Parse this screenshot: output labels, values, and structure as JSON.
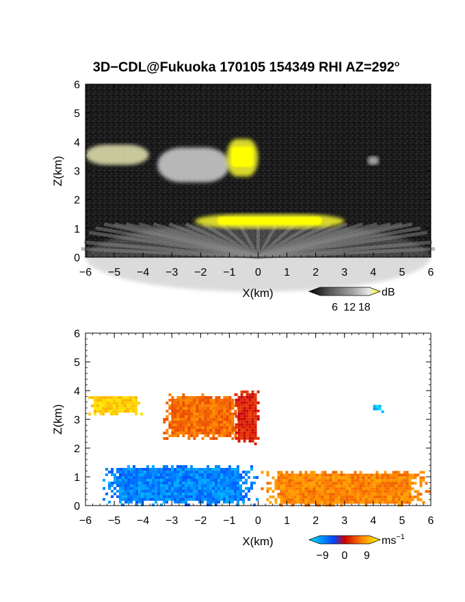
{
  "figure": {
    "title": "3D−CDL@Fukuoka 170105 154349 RHI AZ=292",
    "title_sup": "o"
  },
  "chart_data": [
    {
      "type": "heatmap",
      "panel": "backscatter",
      "xlabel": "X(km)",
      "ylabel": "Z(km)",
      "xlim": [
        -6,
        6
      ],
      "ylim": [
        0,
        6
      ],
      "xticks": [
        "−6",
        "−5",
        "−4",
        "−3",
        "−2",
        "−1",
        "0",
        "1",
        "2",
        "3",
        "4",
        "5",
        "6"
      ],
      "yticks": [
        "0",
        "1",
        "2",
        "3",
        "4",
        "5",
        "6"
      ],
      "colorbar": {
        "unit": "dB",
        "ticks": [
          "6",
          "12",
          "18"
        ],
        "range": [
          0,
          20
        ],
        "colors": [
          "#000000",
          "#5a5a5a",
          "#a0a0a0",
          "#e0e0e0",
          "#ffff00"
        ]
      },
      "features": [
        {
          "name": "cloud-layer-left",
          "x": [
            -6,
            -3.8
          ],
          "z": [
            3.2,
            3.9
          ],
          "value": 16
        },
        {
          "name": "cloud-layer-mid",
          "x": [
            -3.5,
            -1.0
          ],
          "z": [
            2.6,
            3.8
          ],
          "value": 14
        },
        {
          "name": "cloud-core",
          "x": [
            -1.1,
            0.0
          ],
          "z": [
            2.8,
            4.1
          ],
          "value": 19
        },
        {
          "name": "boundary-layer-top",
          "x": [
            -2.2,
            3.0
          ],
          "z": [
            1.0,
            1.5
          ],
          "value": 19
        },
        {
          "name": "thin-streak",
          "x": [
            3.8,
            4.2
          ],
          "z": [
            3.2,
            3.5
          ],
          "value": 12
        }
      ]
    },
    {
      "type": "heatmap",
      "panel": "doppler-velocity",
      "xlabel": "X(km)",
      "ylabel": "Z(km)",
      "xlim": [
        -6,
        6
      ],
      "ylim": [
        0,
        6
      ],
      "xticks": [
        "−6",
        "−5",
        "−4",
        "−3",
        "−2",
        "−1",
        "0",
        "1",
        "2",
        "3",
        "4",
        "5",
        "6"
      ],
      "yticks": [
        "0",
        "1",
        "2",
        "3",
        "4",
        "5",
        "6"
      ],
      "colorbar": {
        "unit": "ms",
        "unit_sup": "−1",
        "ticks": [
          "−9",
          "0",
          "9"
        ],
        "range": [
          -10,
          10
        ],
        "colors": [
          "#00e5ff",
          "#0044ff",
          "#d00000",
          "#ff8800",
          "#ffff00"
        ]
      },
      "features": [
        {
          "name": "upper-cloud-left",
          "x": [
            -6,
            -4.0
          ],
          "z": [
            3.2,
            3.9
          ],
          "value": 8
        },
        {
          "name": "upper-cloud-mid",
          "x": [
            -3.4,
            -0.6
          ],
          "z": [
            2.3,
            4.0
          ],
          "value": 4
        },
        {
          "name": "upper-cloud-core",
          "x": [
            -0.9,
            0.0
          ],
          "z": [
            2.1,
            4.1
          ],
          "value": 1
        },
        {
          "name": "boundary-layer-negative",
          "x": [
            -5.5,
            0.0
          ],
          "z": [
            0,
            1.5
          ],
          "value": -7
        },
        {
          "name": "boundary-layer-positive",
          "x": [
            0.0,
            6.0
          ],
          "z": [
            0,
            1.3
          ],
          "value": 5
        },
        {
          "name": "streak",
          "x": [
            3.9,
            4.3
          ],
          "z": [
            3.3,
            3.6
          ],
          "value": -9
        }
      ]
    }
  ]
}
